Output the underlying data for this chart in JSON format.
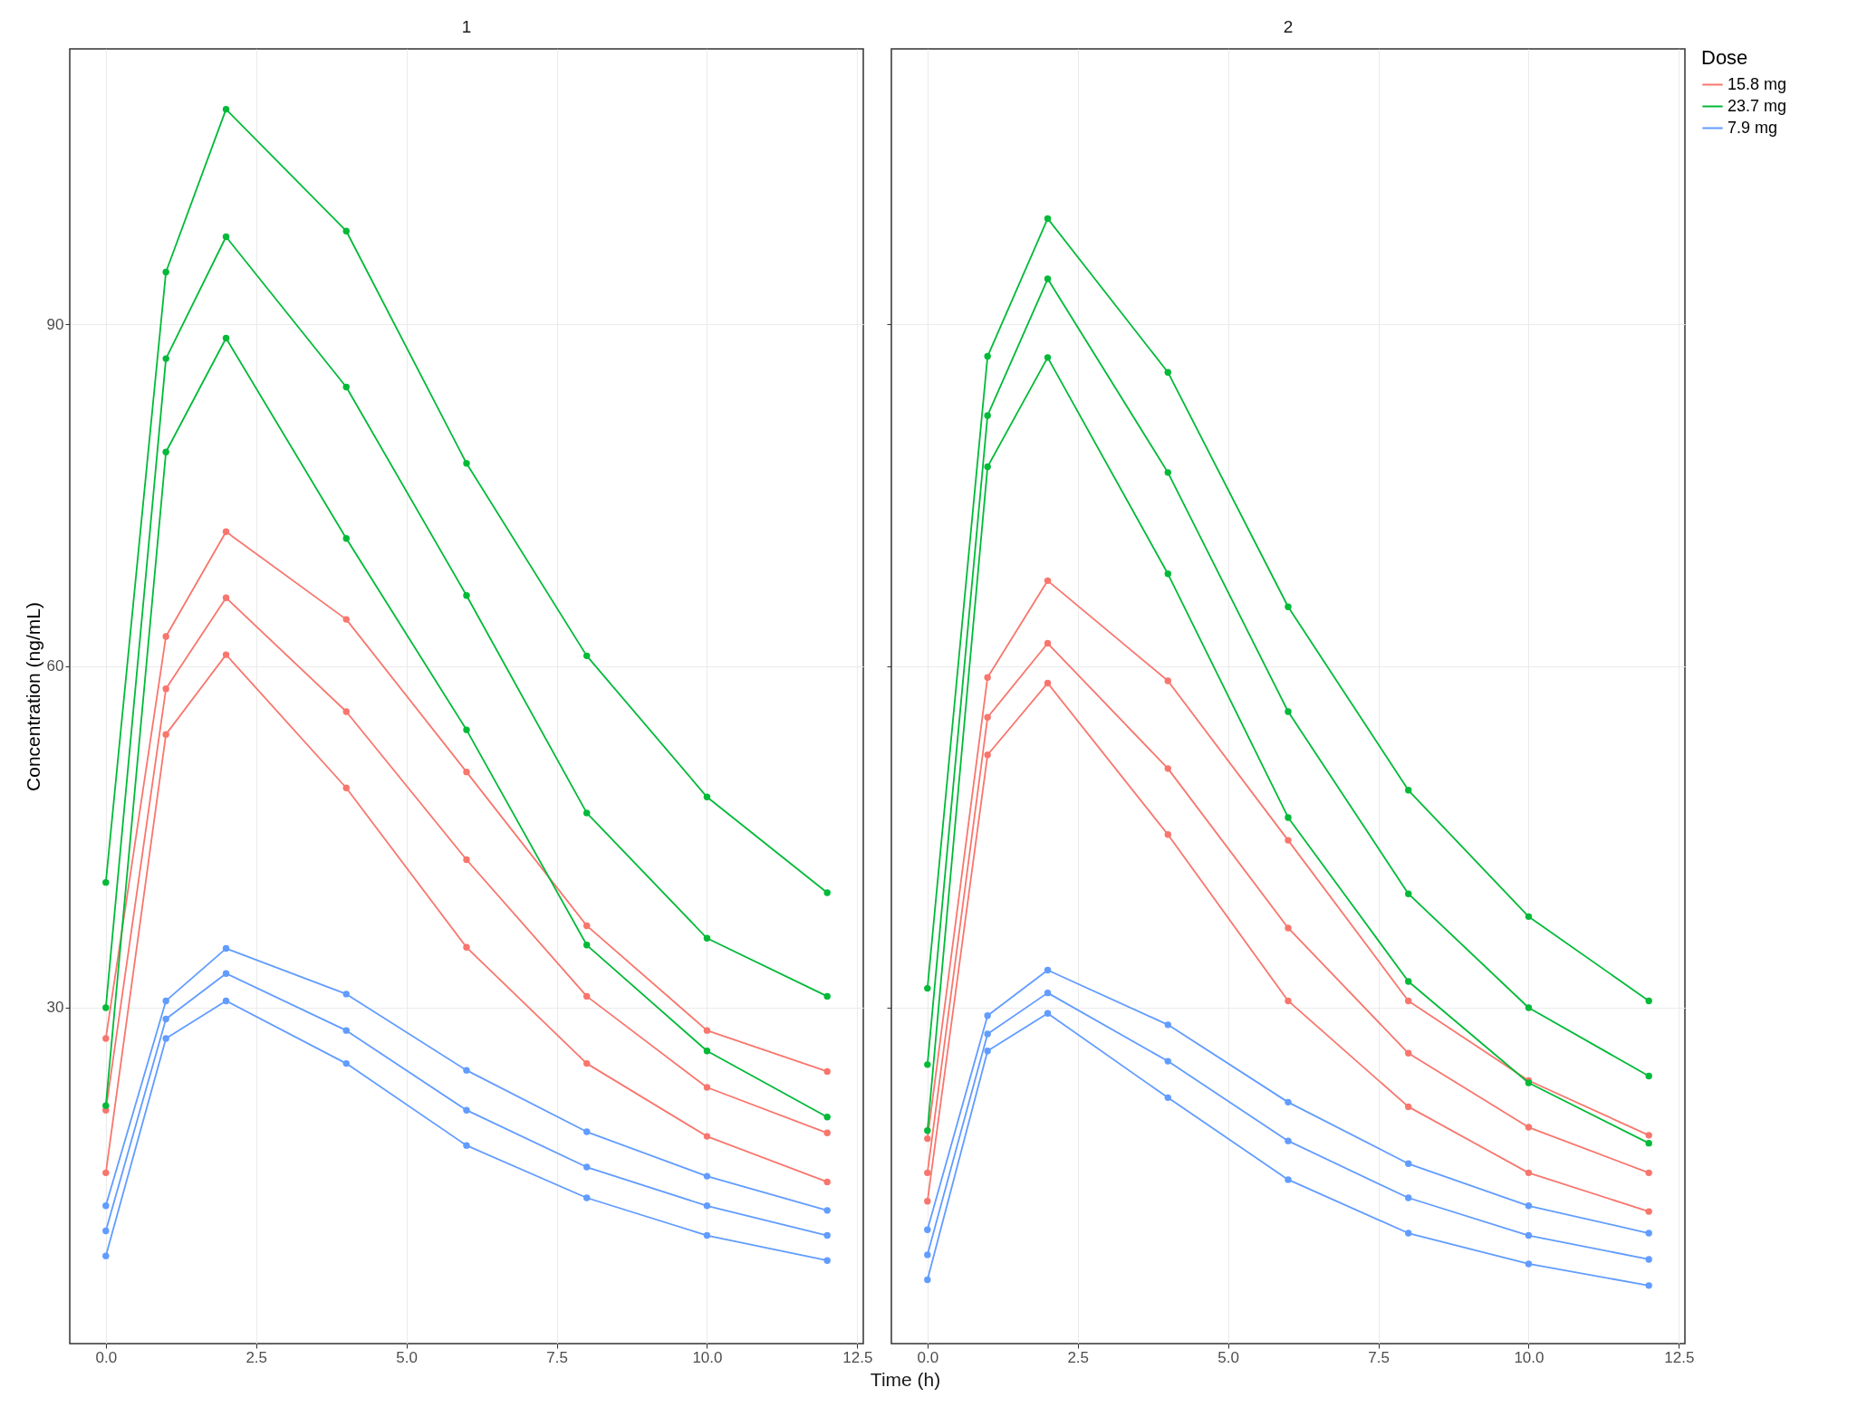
{
  "chart_data": [
    {
      "type": "line",
      "title": "1",
      "xlabel": "Time (h)",
      "ylabel": "Concentration (ng/mL)",
      "x": [
        0,
        1,
        2,
        4,
        6,
        8,
        10,
        12
      ],
      "xlim": [
        -0.6,
        12.6
      ],
      "ylim": [
        0.5,
        114.2
      ],
      "xticks": [
        {
          "value": 0,
          "label": "0.0"
        },
        {
          "value": 2.5,
          "label": "2.5"
        },
        {
          "value": 5,
          "label": "5.0"
        },
        {
          "value": 7.5,
          "label": "7.5"
        },
        {
          "value": 10,
          "label": "10.0"
        },
        {
          "value": 12.5,
          "label": "12.5"
        }
      ],
      "yticks": [
        30,
        60,
        90
      ],
      "grid": true,
      "marker": "circle",
      "line_style": "solid",
      "series": [
        {
          "color": "#f8766d",
          "values": [
            27.3,
            62.6,
            71.8,
            64.1,
            50.7,
            37.2,
            28,
            24.4
          ]
        },
        {
          "color": "#f8766d",
          "values": [
            21,
            58,
            66,
            56,
            43,
            31,
            23,
            19
          ]
        },
        {
          "color": "#f8766d",
          "values": [
            15.5,
            54,
            61,
            49.3,
            35.3,
            25.1,
            18.7,
            14.7
          ]
        },
        {
          "color": "#00ba38",
          "values": [
            41,
            94.6,
            108.9,
            98.2,
            77.8,
            60.9,
            48.5,
            40.1
          ]
        },
        {
          "color": "#00ba38",
          "values": [
            30,
            87,
            97.7,
            84.5,
            66.2,
            47.1,
            36.1,
            31
          ]
        },
        {
          "color": "#00ba38",
          "values": [
            21.4,
            78.8,
            88.8,
            71.2,
            54.4,
            35.5,
            26.2,
            20.4
          ]
        },
        {
          "color": "#619cff",
          "values": [
            12.6,
            30.6,
            35.2,
            31.2,
            24.5,
            19.1,
            15.2,
            12.2
          ]
        },
        {
          "color": "#619cff",
          "values": [
            10.4,
            29,
            33,
            28,
            21,
            16,
            12.6,
            10
          ]
        },
        {
          "color": "#619cff",
          "values": [
            8.2,
            27.3,
            30.6,
            25.1,
            17.9,
            13.3,
            10,
            7.8
          ]
        }
      ]
    },
    {
      "type": "line",
      "title": "2",
      "legend_title": "Dose",
      "legend": "right",
      "tick_labels": "x",
      "x": [
        0,
        1,
        2,
        4,
        6,
        8,
        10,
        12
      ],
      "xlim": [
        -0.6,
        12.6
      ],
      "ylim": [
        0.5,
        114.2
      ],
      "xticks": [
        {
          "value": 0,
          "label": "0.0"
        },
        {
          "value": 2.5,
          "label": "2.5"
        },
        {
          "value": 5,
          "label": "5.0"
        },
        {
          "value": 7.5,
          "label": "7.5"
        },
        {
          "value": 10,
          "label": "10.0"
        },
        {
          "value": 12.5,
          "label": "12.5"
        }
      ],
      "yticks": [
        30,
        60,
        90
      ],
      "grid": true,
      "marker": "circle",
      "line_style": "solid",
      "series": [
        {
          "name": "15.8 mg",
          "color": "#f8766d",
          "values": [
            15.5,
            55.5,
            62,
            51,
            37,
            26,
            19.5,
            15.5
          ]
        },
        {
          "color": "#f8766d",
          "values": [
            18.5,
            59,
            67.5,
            58.7,
            44.7,
            30.6,
            23.6,
            18.8
          ]
        },
        {
          "color": "#f8766d",
          "values": [
            13,
            52.2,
            58.5,
            45.2,
            30.6,
            21.3,
            15.5,
            12.1
          ]
        },
        {
          "name": "23.7 mg",
          "color": "#00ba38",
          "values": [
            25,
            82,
            94,
            77,
            56,
            40,
            30,
            24
          ]
        },
        {
          "color": "#00ba38",
          "values": [
            31.7,
            87.2,
            99.3,
            85.8,
            65.2,
            49.1,
            38,
            30.6
          ]
        },
        {
          "color": "#00ba38",
          "values": [
            19.2,
            77.5,
            87.1,
            68.1,
            46.7,
            32.3,
            23.4,
            18.1
          ]
        },
        {
          "name": "7.9 mg",
          "color": "#619cff",
          "values": [
            8.3,
            27.7,
            31.3,
            25.3,
            18.3,
            13.3,
            10,
            7.9
          ]
        },
        {
          "color": "#619cff",
          "values": [
            10.5,
            29.3,
            33.3,
            28.5,
            21.7,
            16.3,
            12.6,
            10.2
          ]
        },
        {
          "color": "#619cff",
          "values": [
            6.1,
            26.2,
            29.5,
            22.1,
            14.9,
            10.2,
            7.5,
            5.6
          ]
        }
      ]
    }
  ]
}
